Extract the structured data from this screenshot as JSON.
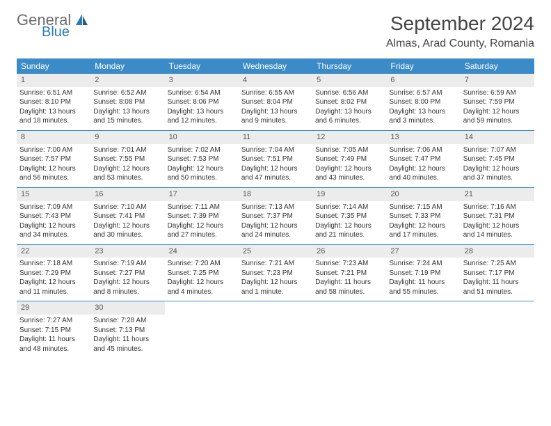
{
  "brand": {
    "word1": "General",
    "word2": "Blue"
  },
  "title": "September 2024",
  "location": "Almas, Arad County, Romania",
  "colors": {
    "header_bg": "#3b8bc8",
    "header_text": "#ffffff",
    "daynum_bg": "#ececec",
    "rule": "#3b8bc8",
    "logo_gray": "#6b6b6b",
    "logo_blue": "#2a7ab8"
  },
  "day_labels": [
    "Sunday",
    "Monday",
    "Tuesday",
    "Wednesday",
    "Thursday",
    "Friday",
    "Saturday"
  ],
  "weeks": [
    [
      {
        "n": "1",
        "sr": "6:51 AM",
        "ss": "8:10 PM",
        "dl": "13 hours and 18 minutes."
      },
      {
        "n": "2",
        "sr": "6:52 AM",
        "ss": "8:08 PM",
        "dl": "13 hours and 15 minutes."
      },
      {
        "n": "3",
        "sr": "6:54 AM",
        "ss": "8:06 PM",
        "dl": "13 hours and 12 minutes."
      },
      {
        "n": "4",
        "sr": "6:55 AM",
        "ss": "8:04 PM",
        "dl": "13 hours and 9 minutes."
      },
      {
        "n": "5",
        "sr": "6:56 AM",
        "ss": "8:02 PM",
        "dl": "13 hours and 6 minutes."
      },
      {
        "n": "6",
        "sr": "6:57 AM",
        "ss": "8:00 PM",
        "dl": "13 hours and 3 minutes."
      },
      {
        "n": "7",
        "sr": "6:59 AM",
        "ss": "7:59 PM",
        "dl": "12 hours and 59 minutes."
      }
    ],
    [
      {
        "n": "8",
        "sr": "7:00 AM",
        "ss": "7:57 PM",
        "dl": "12 hours and 56 minutes."
      },
      {
        "n": "9",
        "sr": "7:01 AM",
        "ss": "7:55 PM",
        "dl": "12 hours and 53 minutes."
      },
      {
        "n": "10",
        "sr": "7:02 AM",
        "ss": "7:53 PM",
        "dl": "12 hours and 50 minutes."
      },
      {
        "n": "11",
        "sr": "7:04 AM",
        "ss": "7:51 PM",
        "dl": "12 hours and 47 minutes."
      },
      {
        "n": "12",
        "sr": "7:05 AM",
        "ss": "7:49 PM",
        "dl": "12 hours and 43 minutes."
      },
      {
        "n": "13",
        "sr": "7:06 AM",
        "ss": "7:47 PM",
        "dl": "12 hours and 40 minutes."
      },
      {
        "n": "14",
        "sr": "7:07 AM",
        "ss": "7:45 PM",
        "dl": "12 hours and 37 minutes."
      }
    ],
    [
      {
        "n": "15",
        "sr": "7:09 AM",
        "ss": "7:43 PM",
        "dl": "12 hours and 34 minutes."
      },
      {
        "n": "16",
        "sr": "7:10 AM",
        "ss": "7:41 PM",
        "dl": "12 hours and 30 minutes."
      },
      {
        "n": "17",
        "sr": "7:11 AM",
        "ss": "7:39 PM",
        "dl": "12 hours and 27 minutes."
      },
      {
        "n": "18",
        "sr": "7:13 AM",
        "ss": "7:37 PM",
        "dl": "12 hours and 24 minutes."
      },
      {
        "n": "19",
        "sr": "7:14 AM",
        "ss": "7:35 PM",
        "dl": "12 hours and 21 minutes."
      },
      {
        "n": "20",
        "sr": "7:15 AM",
        "ss": "7:33 PM",
        "dl": "12 hours and 17 minutes."
      },
      {
        "n": "21",
        "sr": "7:16 AM",
        "ss": "7:31 PM",
        "dl": "12 hours and 14 minutes."
      }
    ],
    [
      {
        "n": "22",
        "sr": "7:18 AM",
        "ss": "7:29 PM",
        "dl": "12 hours and 11 minutes."
      },
      {
        "n": "23",
        "sr": "7:19 AM",
        "ss": "7:27 PM",
        "dl": "12 hours and 8 minutes."
      },
      {
        "n": "24",
        "sr": "7:20 AM",
        "ss": "7:25 PM",
        "dl": "12 hours and 4 minutes."
      },
      {
        "n": "25",
        "sr": "7:21 AM",
        "ss": "7:23 PM",
        "dl": "12 hours and 1 minute."
      },
      {
        "n": "26",
        "sr": "7:23 AM",
        "ss": "7:21 PM",
        "dl": "11 hours and 58 minutes."
      },
      {
        "n": "27",
        "sr": "7:24 AM",
        "ss": "7:19 PM",
        "dl": "11 hours and 55 minutes."
      },
      {
        "n": "28",
        "sr": "7:25 AM",
        "ss": "7:17 PM",
        "dl": "11 hours and 51 minutes."
      }
    ],
    [
      {
        "n": "29",
        "sr": "7:27 AM",
        "ss": "7:15 PM",
        "dl": "11 hours and 48 minutes."
      },
      {
        "n": "30",
        "sr": "7:28 AM",
        "ss": "7:13 PM",
        "dl": "11 hours and 45 minutes."
      },
      null,
      null,
      null,
      null,
      null
    ]
  ],
  "labels": {
    "sunrise": "Sunrise:",
    "sunset": "Sunset:",
    "daylight": "Daylight:"
  }
}
